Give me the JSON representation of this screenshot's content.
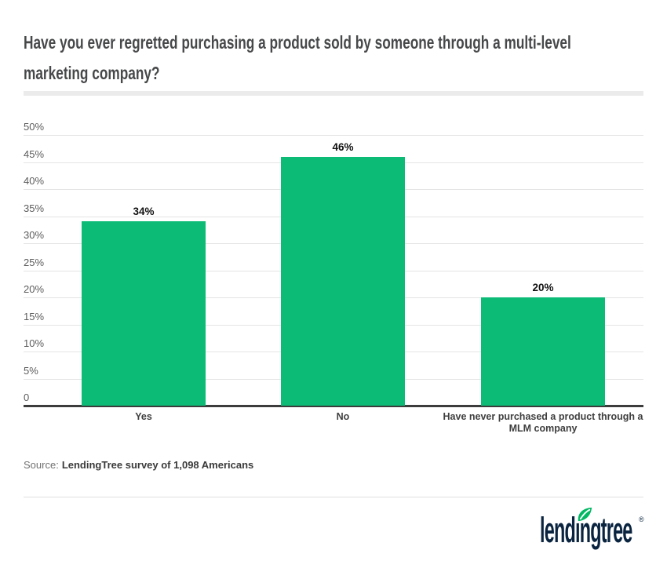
{
  "page": {
    "title": "Have you ever regretted purchasing a product sold by someone through a multi-level marketing company?",
    "source": {
      "prefix": "Source:",
      "text": "LendingTree survey of 1,098 Americans"
    },
    "logo": {
      "text": "lendingtree",
      "registered": "®"
    }
  },
  "colors": {
    "bar_green": "#0cbc76",
    "leaf_green": "#01b863",
    "logo_navy": "#0a2440",
    "gridline": "#e4e4e4",
    "axis_line": "#3c3c3c",
    "title_text": "#47484a",
    "tick_text": "#5c5c5c",
    "divider": "#ebebeb"
  },
  "chart_data": {
    "type": "bar",
    "title": "Have you ever regretted purchasing a product sold by someone through a multi-level marketing company?",
    "categories": [
      "Yes",
      "No",
      "Have never purchased a product through a MLM company"
    ],
    "values": [
      34,
      46,
      20
    ],
    "value_labels": [
      "34%",
      "46%",
      "20%"
    ],
    "bar_color": "#0cbc76",
    "xlabel": "",
    "ylabel": "",
    "ylim": [
      0,
      50
    ],
    "grid": true,
    "legend": false,
    "yticks": [
      {
        "value": 50,
        "label": "50%"
      },
      {
        "value": 45,
        "label": "45%"
      },
      {
        "value": 40,
        "label": "40%"
      },
      {
        "value": 35,
        "label": "35%"
      },
      {
        "value": 30,
        "label": "30%"
      },
      {
        "value": 25,
        "label": "25%"
      },
      {
        "value": 20,
        "label": "20%"
      },
      {
        "value": 15,
        "label": "15%"
      },
      {
        "value": 10,
        "label": "10%"
      },
      {
        "value": 5,
        "label": "5%"
      },
      {
        "value": 0,
        "label": "0"
      }
    ]
  }
}
